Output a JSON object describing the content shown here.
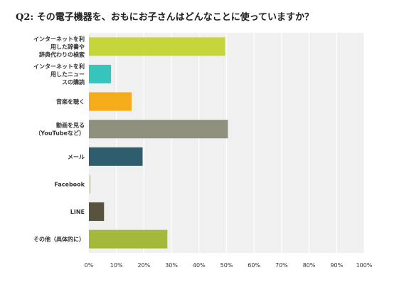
{
  "question": {
    "number": "Q2",
    "text": ": その電子機器を、おもにお子さんはどんなことに使っていますか？"
  },
  "chart_data": {
    "type": "bar",
    "orientation": "horizontal",
    "categories": [
      [
        "インターネットを利",
        "用した辞書や",
        "辞典代わりの検索"
      ],
      [
        "インターネットを利",
        "用したニュー",
        "スの購読"
      ],
      [
        "音楽を聴く"
      ],
      [
        "動画を見る",
        "（YouTubeなど）"
      ],
      [
        "メール"
      ],
      [
        "Facebook"
      ],
      [
        "LINE"
      ],
      [
        "その他（具体的に）"
      ]
    ],
    "values": [
      49.5,
      8,
      15.5,
      50.5,
      19.5,
      0.7,
      5.5,
      28.5
    ],
    "colors": [
      "#c6d63a",
      "#36c4bd",
      "#f5ac1b",
      "#8e8f7d",
      "#2e5e6e",
      "#d9d9c2",
      "#58533f",
      "#a4b939"
    ],
    "xlim": [
      0,
      100
    ],
    "xticks": [
      "0%",
      "10%",
      "20%",
      "30%",
      "40%",
      "50%",
      "60%",
      "70%",
      "80%",
      "90%",
      "100%"
    ],
    "grid": true,
    "background": "#f0f0f0"
  }
}
